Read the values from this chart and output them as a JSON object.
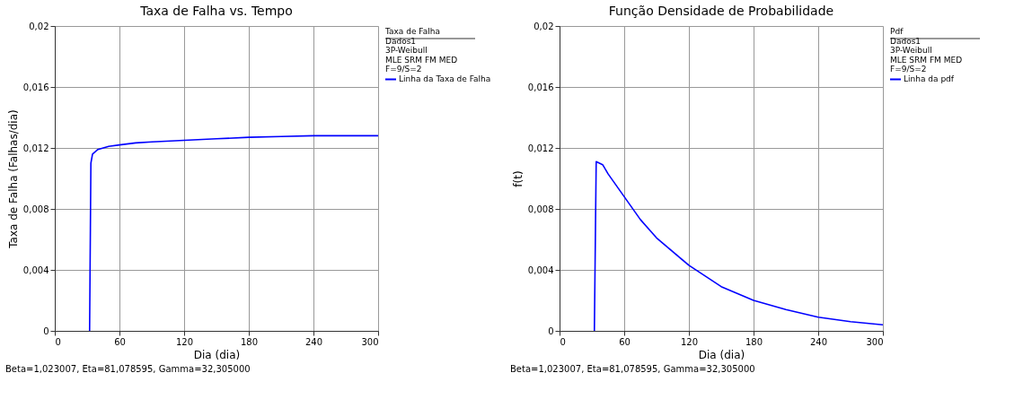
{
  "chart_data": [
    {
      "type": "line",
      "title": "Taxa de Falha vs. Tempo",
      "xlabel": "Dia (dia)",
      "ylabel": "Taxa de Falha (Falhas/dia)",
      "legend_title": "Taxa de Falha",
      "legend": "right",
      "annotations": [
        "Dados1",
        "3P-Weibull",
        "MLE SRM FM MED",
        "F=9/S=2",
        "Beta=1,023007, Eta=81,078595, Gamma=32,305000"
      ],
      "x": [
        32.3,
        33.5,
        35,
        40,
        45,
        50,
        60,
        75,
        90,
        120,
        150,
        180,
        210,
        240,
        270,
        300
      ],
      "series": [
        {
          "name": "Linha da Taxa de Falha",
          "color": "#0000ff",
          "values": [
            0,
            0.011,
            0.0116,
            0.0119,
            0.012,
            0.0121,
            0.0122,
            0.01233,
            0.0124,
            0.0125,
            0.0126,
            0.0127,
            0.01275,
            0.0128,
            0.0128,
            0.0128
          ]
        }
      ],
      "xlim": [
        0,
        300
      ],
      "xticks": [
        0,
        60,
        120,
        180,
        240,
        300
      ],
      "ylim": [
        0,
        0.02
      ],
      "yticks": [
        0,
        {
          "value": 0.004,
          "label": "0,004"
        },
        {
          "value": 0.008,
          "label": "0,008"
        },
        {
          "value": 0.012,
          "label": "0,012"
        },
        {
          "value": 0.016,
          "label": "0,016"
        },
        {
          "value": 0.02,
          "label": "0,02"
        }
      ],
      "grid": true,
      "marker": "none",
      "line_style": "solid"
    },
    {
      "type": "line",
      "title": "Função Densidade de Probabilidade",
      "xlabel": "Dia (dia)",
      "ylabel": "f(t)",
      "legend_title": "Pdf",
      "legend": "right",
      "annotations": [
        "Dados1",
        "3P-Weibull",
        "MLE SRM FM MED",
        "F=9/S=2",
        "Beta=1,023007, Eta=81,078595, Gamma=32,305000"
      ],
      "x": [
        32.3,
        34,
        40,
        45,
        50,
        60,
        75,
        90,
        120,
        150,
        180,
        210,
        240,
        270,
        300
      ],
      "series": [
        {
          "name": "Linha da pdf",
          "color": "#0000ff",
          "values": [
            0,
            0.0111,
            0.0109,
            0.0103,
            0.0098,
            0.0088,
            0.0073,
            0.0061,
            0.0043,
            0.0029,
            0.002,
            0.0014,
            0.0009,
            0.0006,
            0.0004
          ]
        }
      ],
      "xlim": [
        0,
        300
      ],
      "xticks": [
        0,
        60,
        120,
        180,
        240,
        300
      ],
      "ylim": [
        0,
        0.02
      ],
      "yticks": [
        0,
        {
          "value": 0.004,
          "label": "0,004"
        },
        {
          "value": 0.008,
          "label": "0,008"
        },
        {
          "value": 0.012,
          "label": "0,012"
        },
        {
          "value": 0.016,
          "label": "0,016"
        },
        {
          "value": 0.02,
          "label": "0,02"
        }
      ],
      "grid": true,
      "marker": "none",
      "line_style": "solid"
    }
  ]
}
